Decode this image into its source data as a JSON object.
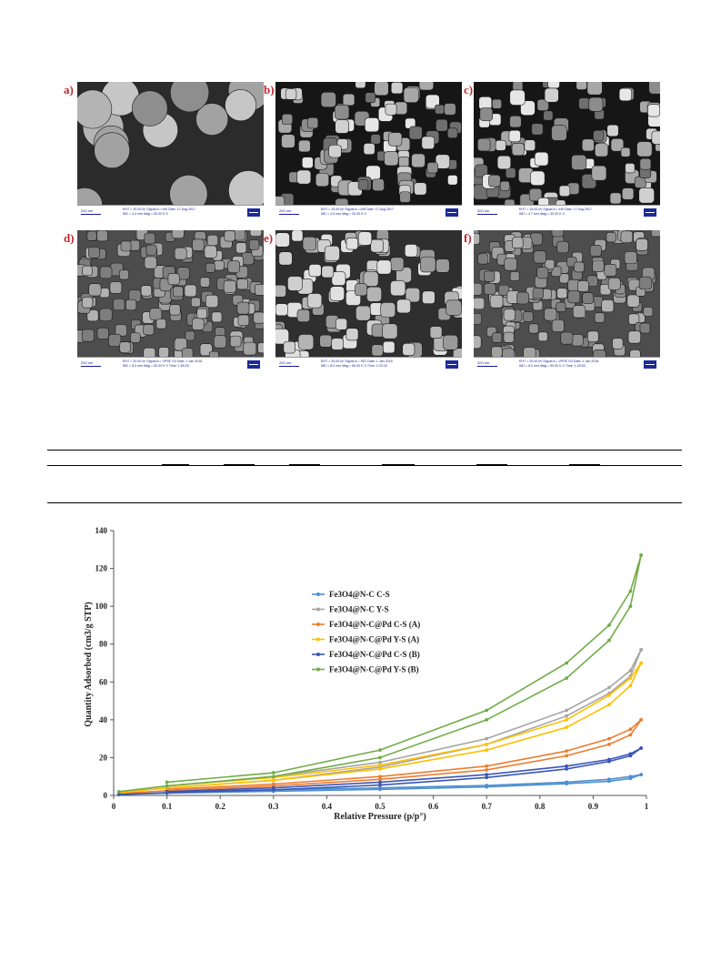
{
  "sem_figure": {
    "panels": [
      {
        "letter": "a)",
        "scale": "200 nm",
        "meta_1": "EHT = 15.00 kV   Signal A = InR   Date: 17 Aug 2017",
        "meta_2": "WD = 4.4 mm   Mag = 50.00 K X",
        "texture": "smooth-spheres"
      },
      {
        "letter": "b)",
        "scale": "200 nm",
        "meta_1": "EHT = 15.00 kV   Signal A = InR   Date: 17 Aug 2017",
        "meta_2": "WD = 4.5 mm   Mag = 30.00 K X",
        "texture": "cubes-dark"
      },
      {
        "letter": "c)",
        "scale": "200 nm",
        "meta_1": "EHT = 15.00 kV   Signal A = InR   Date: 17 Aug 2017",
        "meta_2": "WD = 4.7 mm   Mag = 30.00 K X",
        "texture": "cubes-dark"
      },
      {
        "letter": "d)",
        "scale": "200 nm",
        "meta_1": "EHT = 20.00 kV   Signal A = VPSE G3   Date: 1 Jan 2018",
        "meta_2": "WD = 8.0 mm   Mag = 50.00 K X   Time: 1:59:29",
        "texture": "cubes-gray"
      },
      {
        "letter": "e)",
        "scale": "200 nm",
        "meta_1": "EHT = 20.00 kV   Signal A = SE1   Date: 1 Jan 2018",
        "meta_2": "WD = 8.0 mm   Mag = 50.00 K X   Time: 1:22:43",
        "texture": "cubes-bright"
      },
      {
        "letter": "f)",
        "scale": "200 nm",
        "meta_1": "EHT = 20.00 kV   Signal A = VPSE G3   Date: 1 Jan 2018",
        "meta_2": "WD = 8.0 mm   Mag = 50.00 K X   Time: 1:29:53",
        "texture": "cubes-gray"
      }
    ]
  },
  "chart_data": {
    "type": "line",
    "title": "",
    "xlabel": "Relative Pressure (p/p°)",
    "ylabel": "Quantity Adsorbed (cm3/g STP)",
    "xlim": [
      0,
      1
    ],
    "ylim": [
      0,
      140
    ],
    "xticks": [
      "0",
      "0.1",
      "0.2",
      "0.3",
      "0.4",
      "0.5",
      "0.6",
      "0.7",
      "0.8",
      "0.9",
      "1"
    ],
    "yticks": [
      "0",
      "20",
      "40",
      "60",
      "80",
      "100",
      "120",
      "140"
    ],
    "legend_position": "upper-middle",
    "series": [
      {
        "name": "Fe3O4@N-C C-S",
        "color": "#4f8fd0",
        "adsorption": [
          [
            0.01,
            0.5
          ],
          [
            0.1,
            1.2
          ],
          [
            0.3,
            2.2
          ],
          [
            0.5,
            3.2
          ],
          [
            0.7,
            4.5
          ],
          [
            0.85,
            6.2
          ],
          [
            0.93,
            7.5
          ],
          [
            0.97,
            9.0
          ],
          [
            0.99,
            11.0
          ]
        ],
        "desorption": [
          [
            0.99,
            11.0
          ],
          [
            0.97,
            10.0
          ],
          [
            0.93,
            8.5
          ],
          [
            0.85,
            7.0
          ],
          [
            0.7,
            5.3
          ],
          [
            0.5,
            4.0
          ],
          [
            0.3,
            3.0
          ],
          [
            0.1,
            1.8
          ]
        ]
      },
      {
        "name": "Fe3O4@N-C Y-S",
        "color": "#a5a5a5",
        "adsorption": [
          [
            0.01,
            1.5
          ],
          [
            0.1,
            4.0
          ],
          [
            0.3,
            8.0
          ],
          [
            0.5,
            15.0
          ],
          [
            0.7,
            27.0
          ],
          [
            0.85,
            42.0
          ],
          [
            0.93,
            54.0
          ],
          [
            0.97,
            63.0
          ],
          [
            0.99,
            77.0
          ]
        ],
        "desorption": [
          [
            0.99,
            77.0
          ],
          [
            0.97,
            66.0
          ],
          [
            0.93,
            57.0
          ],
          [
            0.85,
            45.0
          ],
          [
            0.7,
            30.0
          ],
          [
            0.5,
            17.5
          ],
          [
            0.3,
            10.0
          ],
          [
            0.1,
            5.0
          ]
        ]
      },
      {
        "name": "Fe3O4@N-C@Pd C-S (A)",
        "color": "#ed7d31",
        "adsorption": [
          [
            0.01,
            1.0
          ],
          [
            0.1,
            2.5
          ],
          [
            0.3,
            5.0
          ],
          [
            0.5,
            8.5
          ],
          [
            0.7,
            13.5
          ],
          [
            0.85,
            21.0
          ],
          [
            0.93,
            27.0
          ],
          [
            0.97,
            32.0
          ],
          [
            0.99,
            40.0
          ]
        ],
        "desorption": [
          [
            0.99,
            40.0
          ],
          [
            0.97,
            35.0
          ],
          [
            0.93,
            30.0
          ],
          [
            0.85,
            23.5
          ],
          [
            0.7,
            15.5
          ],
          [
            0.5,
            10.0
          ],
          [
            0.3,
            6.0
          ],
          [
            0.1,
            3.2
          ]
        ]
      },
      {
        "name": "Fe3O4@N-C@Pd Y-S (A)",
        "color": "#ffc000",
        "adsorption": [
          [
            0.01,
            1.5
          ],
          [
            0.1,
            4.0
          ],
          [
            0.3,
            8.0
          ],
          [
            0.5,
            14.0
          ],
          [
            0.7,
            24.0
          ],
          [
            0.85,
            36.0
          ],
          [
            0.93,
            48.0
          ],
          [
            0.97,
            58.0
          ],
          [
            0.99,
            70.0
          ]
        ],
        "desorption": [
          [
            0.99,
            70.0
          ],
          [
            0.97,
            62.0
          ],
          [
            0.93,
            53.0
          ],
          [
            0.85,
            40.0
          ],
          [
            0.7,
            27.0
          ],
          [
            0.5,
            16.0
          ],
          [
            0.3,
            9.5
          ],
          [
            0.1,
            5.0
          ]
        ]
      },
      {
        "name": "Fe3O4@N-C@Pd C-S (B)",
        "color": "#3b56b5",
        "adsorption": [
          [
            0.01,
            0.5
          ],
          [
            0.1,
            1.5
          ],
          [
            0.3,
            3.0
          ],
          [
            0.5,
            5.5
          ],
          [
            0.7,
            9.5
          ],
          [
            0.85,
            14.0
          ],
          [
            0.93,
            18.0
          ],
          [
            0.97,
            21.0
          ],
          [
            0.99,
            25.0
          ]
        ],
        "desorption": [
          [
            0.99,
            25.0
          ],
          [
            0.97,
            22.0
          ],
          [
            0.93,
            19.0
          ],
          [
            0.85,
            15.5
          ],
          [
            0.7,
            11.0
          ],
          [
            0.5,
            7.0
          ],
          [
            0.3,
            4.0
          ],
          [
            0.1,
            2.0
          ]
        ]
      },
      {
        "name": "Fe3O4@N-C@Pd Y-S (B)",
        "color": "#70ad47",
        "adsorption": [
          [
            0.01,
            2.0
          ],
          [
            0.1,
            5.0
          ],
          [
            0.3,
            10.0
          ],
          [
            0.5,
            20.0
          ],
          [
            0.7,
            40.0
          ],
          [
            0.85,
            62.0
          ],
          [
            0.93,
            82.0
          ],
          [
            0.97,
            100.0
          ],
          [
            0.99,
            127.0
          ]
        ],
        "desorption": [
          [
            0.99,
            127.0
          ],
          [
            0.97,
            108.0
          ],
          [
            0.93,
            90.0
          ],
          [
            0.85,
            70.0
          ],
          [
            0.7,
            45.0
          ],
          [
            0.5,
            24.0
          ],
          [
            0.3,
            12.0
          ],
          [
            0.1,
            7.0
          ]
        ]
      }
    ]
  }
}
